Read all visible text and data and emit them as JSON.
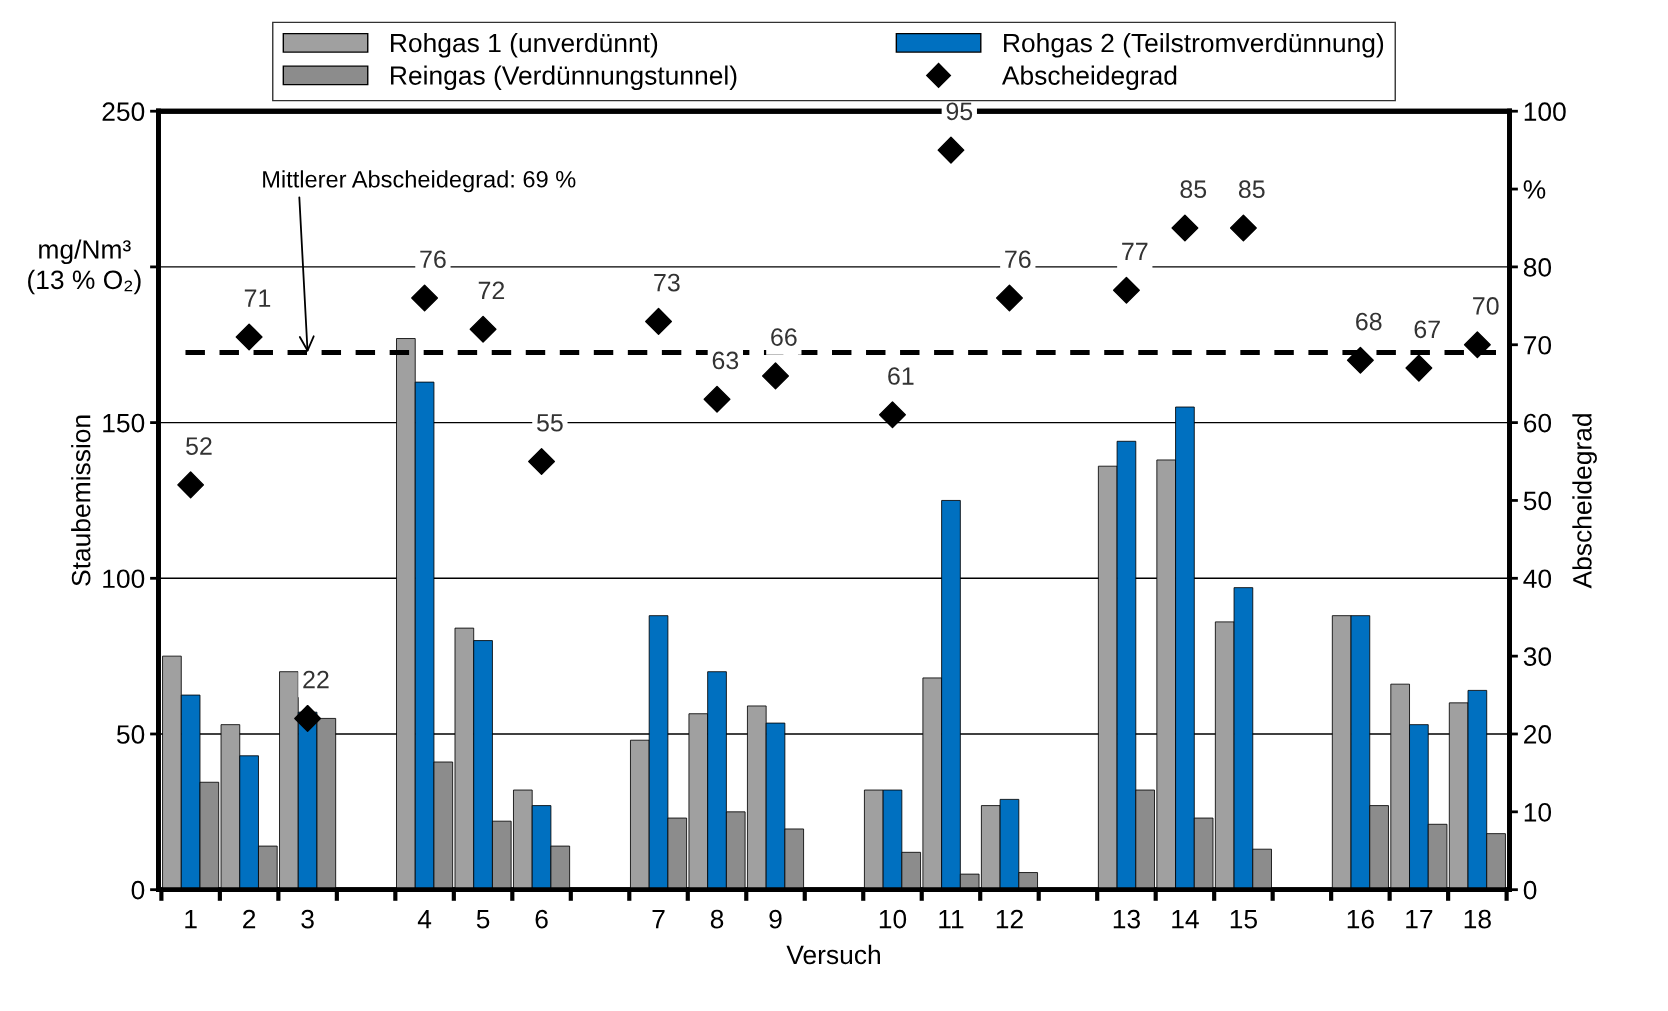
{
  "chart_data": {
    "type": "bar",
    "categories": [
      "1",
      "2",
      "3",
      null,
      "4",
      "5",
      "6",
      null,
      "7",
      "8",
      "9",
      null,
      "10",
      "11",
      "12",
      null,
      "13",
      "14",
      "15",
      null,
      "16",
      "17",
      "18"
    ],
    "series": [
      {
        "name": "Rohgas 1 (unverdünnt)",
        "color": "#a0a0a0",
        "values": [
          75,
          53,
          70,
          null,
          177,
          84,
          32,
          null,
          48,
          56.5,
          59,
          null,
          32,
          68,
          27,
          null,
          136,
          138,
          86,
          null,
          88,
          66,
          60
        ]
      },
      {
        "name": "Rohgas 2 (Teilstromverdünnung)",
        "color": "#0070c0",
        "values": [
          62.5,
          43,
          57,
          null,
          163,
          80,
          27,
          null,
          88,
          70,
          53.5,
          null,
          32,
          125,
          29,
          null,
          144,
          155,
          97,
          null,
          88,
          53,
          64
        ]
      },
      {
        "name": "Reingas (Verdünnungstunnel)",
        "color": "#8c8c8c",
        "values": [
          34.5,
          14,
          55,
          null,
          41,
          22,
          14,
          null,
          23,
          25,
          19.5,
          null,
          12,
          5,
          5.5,
          null,
          32,
          23,
          13,
          null,
          27,
          21,
          18
        ]
      },
      {
        "name": "Abscheidegrad",
        "type": "scatter",
        "axis": "y2",
        "color": "#000000",
        "marker": "diamond",
        "data_labels": true,
        "values": [
          52,
          71,
          22,
          null,
          76,
          72,
          55,
          null,
          73,
          63,
          66,
          null,
          61,
          95,
          76,
          null,
          77,
          85,
          85,
          null,
          68,
          67,
          70
        ]
      }
    ],
    "xlabel": "Versuch",
    "ylabel": "Staubemission",
    "y2label": "Abscheidegrad",
    "ylim": [
      0,
      250
    ],
    "yticks": [
      0,
      50,
      100,
      150,
      {
        "value": 200,
        "label": null
      },
      250
    ],
    "y2lim": [
      0,
      100
    ],
    "y2ticks": [
      0,
      10,
      20,
      30,
      40,
      50,
      60,
      70,
      80,
      {
        "value": 90,
        "label": "%"
      },
      100
    ],
    "grid": "y",
    "legend": "top",
    "ref_lines": [
      {
        "axis": "y2",
        "value": 69,
        "color": "#000000",
        "line_style": "dashed",
        "label": "Mittlerer Abscheidegrad: 69 %"
      }
    ],
    "annotations": [
      "mg/Nm³\n(13 % O₂)"
    ]
  }
}
